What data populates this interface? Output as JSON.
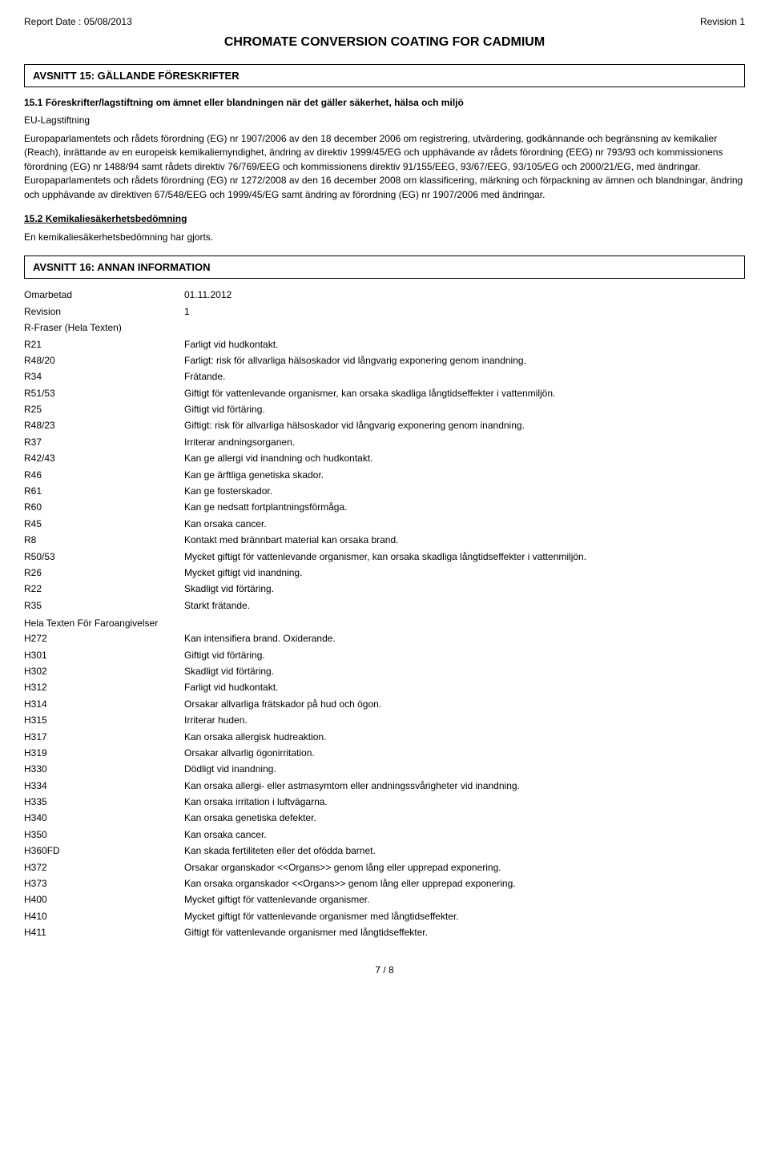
{
  "header": {
    "report_date_label": "Report Date : 05/08/2013",
    "revision_label": "Revision  1",
    "title": "CHROMATE CONVERSION COATING FOR CADMIUM"
  },
  "section15": {
    "header": "AVSNITT 15: GÄLLANDE FÖRESKRIFTER",
    "sub1": "15.1 Föreskrifter/lagstiftning om ämnet eller blandningen när det gäller säkerhet, hälsa och miljö",
    "eu_label": "EU-Lagstiftning",
    "eu_text": "Europaparlamentets och rådets förordning (EG) nr 1907/2006 av den 18 december 2006 om registrering,  utvärdering,  godkännande och begränsning av kemikalier (Reach),  inrättande av en europeisk kemikaliemyndighet,  ändring av direktiv 1999/45/EG och upphävande av rådets förordning (EEG) nr 793/93 och kommissionens förordning (EG) nr 1488/94 samt rådets direktiv 76/769/EEG och kommissionens direktiv 91/155/EEG,  93/67/EEG,  93/105/EG och 2000/21/EG,  med ändringar. Europaparlamentets och rådets förordning (EG) nr 1272/2008 av den 16 december 2008 om klassificering,  märkning och förpackning av ämnen och blandningar,  ändring och upphävande av direktiven 67/548/EEG och 1999/45/EG samt ändring av förordning (EG) nr 1907/2006 med ändringar.",
    "sub2": "15.2 Kemikaliesäkerhetsbedömning",
    "sub2_text": "En kemikaliesäkerhetsbedömning har gjorts."
  },
  "section16": {
    "header": "AVSNITT 16: ANNAN INFORMATION",
    "top_rows": [
      {
        "k": "Omarbetad",
        "v": "01.11.2012"
      },
      {
        "k": "Revision",
        "v": "1"
      },
      {
        "k": "R-Fraser (Hela Texten)",
        "v": ""
      }
    ],
    "r_phrases": [
      {
        "k": "R21",
        "v": "Farligt vid hudkontakt."
      },
      {
        "k": "R48/20",
        "v": "Farligt: risk för allvarliga hälsoskador vid långvarig exponering genom inandning."
      },
      {
        "k": "R34",
        "v": "Frätande."
      },
      {
        "k": "R51/53",
        "v": "Giftigt för vattenlevande organismer, kan orsaka skadliga långtidseffekter i vattenmiljön."
      },
      {
        "k": "R25",
        "v": "Giftigt vid förtäring."
      },
      {
        "k": "R48/23",
        "v": "Giftigt: risk för allvarliga hälsoskador vid långvarig exponering genom inandning."
      },
      {
        "k": "R37",
        "v": "Irriterar andningsorganen."
      },
      {
        "k": "R42/43",
        "v": "Kan ge allergi vid inandning och hudkontakt."
      },
      {
        "k": "R46",
        "v": "Kan ge ärftliga genetiska skador."
      },
      {
        "k": "R61",
        "v": "Kan ge fosterskador."
      },
      {
        "k": "R60",
        "v": "Kan ge nedsatt fortplantningsförmåga."
      },
      {
        "k": "R45",
        "v": "Kan orsaka cancer."
      },
      {
        "k": "R8",
        "v": "Kontakt med brännbart material kan orsaka brand."
      },
      {
        "k": "R50/53",
        "v": "Mycket giftigt för vattenlevande organismer, kan orsaka skadliga långtidseffekter i vattenmiljön."
      },
      {
        "k": "R26",
        "v": "Mycket giftigt vid inandning."
      },
      {
        "k": "R22",
        "v": "Skadligt vid förtäring."
      },
      {
        "k": "R35",
        "v": "Starkt frätande."
      }
    ],
    "h_label": "Hela Texten För Faroangivelser",
    "h_phrases": [
      {
        "k": "H272",
        "v": "Kan intensifiera brand. Oxiderande."
      },
      {
        "k": "H301",
        "v": "Giftigt vid förtäring."
      },
      {
        "k": "H302",
        "v": "Skadligt vid förtäring."
      },
      {
        "k": "H312",
        "v": "Farligt vid hudkontakt."
      },
      {
        "k": "H314",
        "v": "Orsakar allvarliga frätskador på hud och ögon."
      },
      {
        "k": "H315",
        "v": "Irriterar huden."
      },
      {
        "k": "H317",
        "v": "Kan orsaka allergisk hudreaktion."
      },
      {
        "k": "H319",
        "v": "Orsakar allvarlig ögonirritation."
      },
      {
        "k": "H330",
        "v": "Dödligt vid inandning."
      },
      {
        "k": "H334",
        "v": "Kan orsaka allergi- eller astmasymtom eller andningssvårigheter vid inandning."
      },
      {
        "k": "H335",
        "v": "Kan orsaka irritation i luftvägarna."
      },
      {
        "k": "H340",
        "v": "Kan orsaka genetiska defekter."
      },
      {
        "k": "H350",
        "v": "Kan orsaka cancer."
      },
      {
        "k": "H360FD",
        "v": "Kan skada fertiliteten eller det ofödda barnet."
      },
      {
        "k": "H372",
        "v": "Orsakar organskador <<Organs>> genom lång eller upprepad exponering."
      },
      {
        "k": "H373",
        "v": "Kan orsaka organskador <<Organs>> genom lång eller upprepad exponering."
      },
      {
        "k": "H400",
        "v": "Mycket giftigt för vattenlevande organismer."
      },
      {
        "k": "H410",
        "v": "Mycket giftigt för vattenlevande organismer med långtidseffekter."
      },
      {
        "k": "H411",
        "v": "Giftigt för vattenlevande organismer med långtidseffekter."
      }
    ]
  },
  "footer": {
    "page": "7 /  8"
  }
}
